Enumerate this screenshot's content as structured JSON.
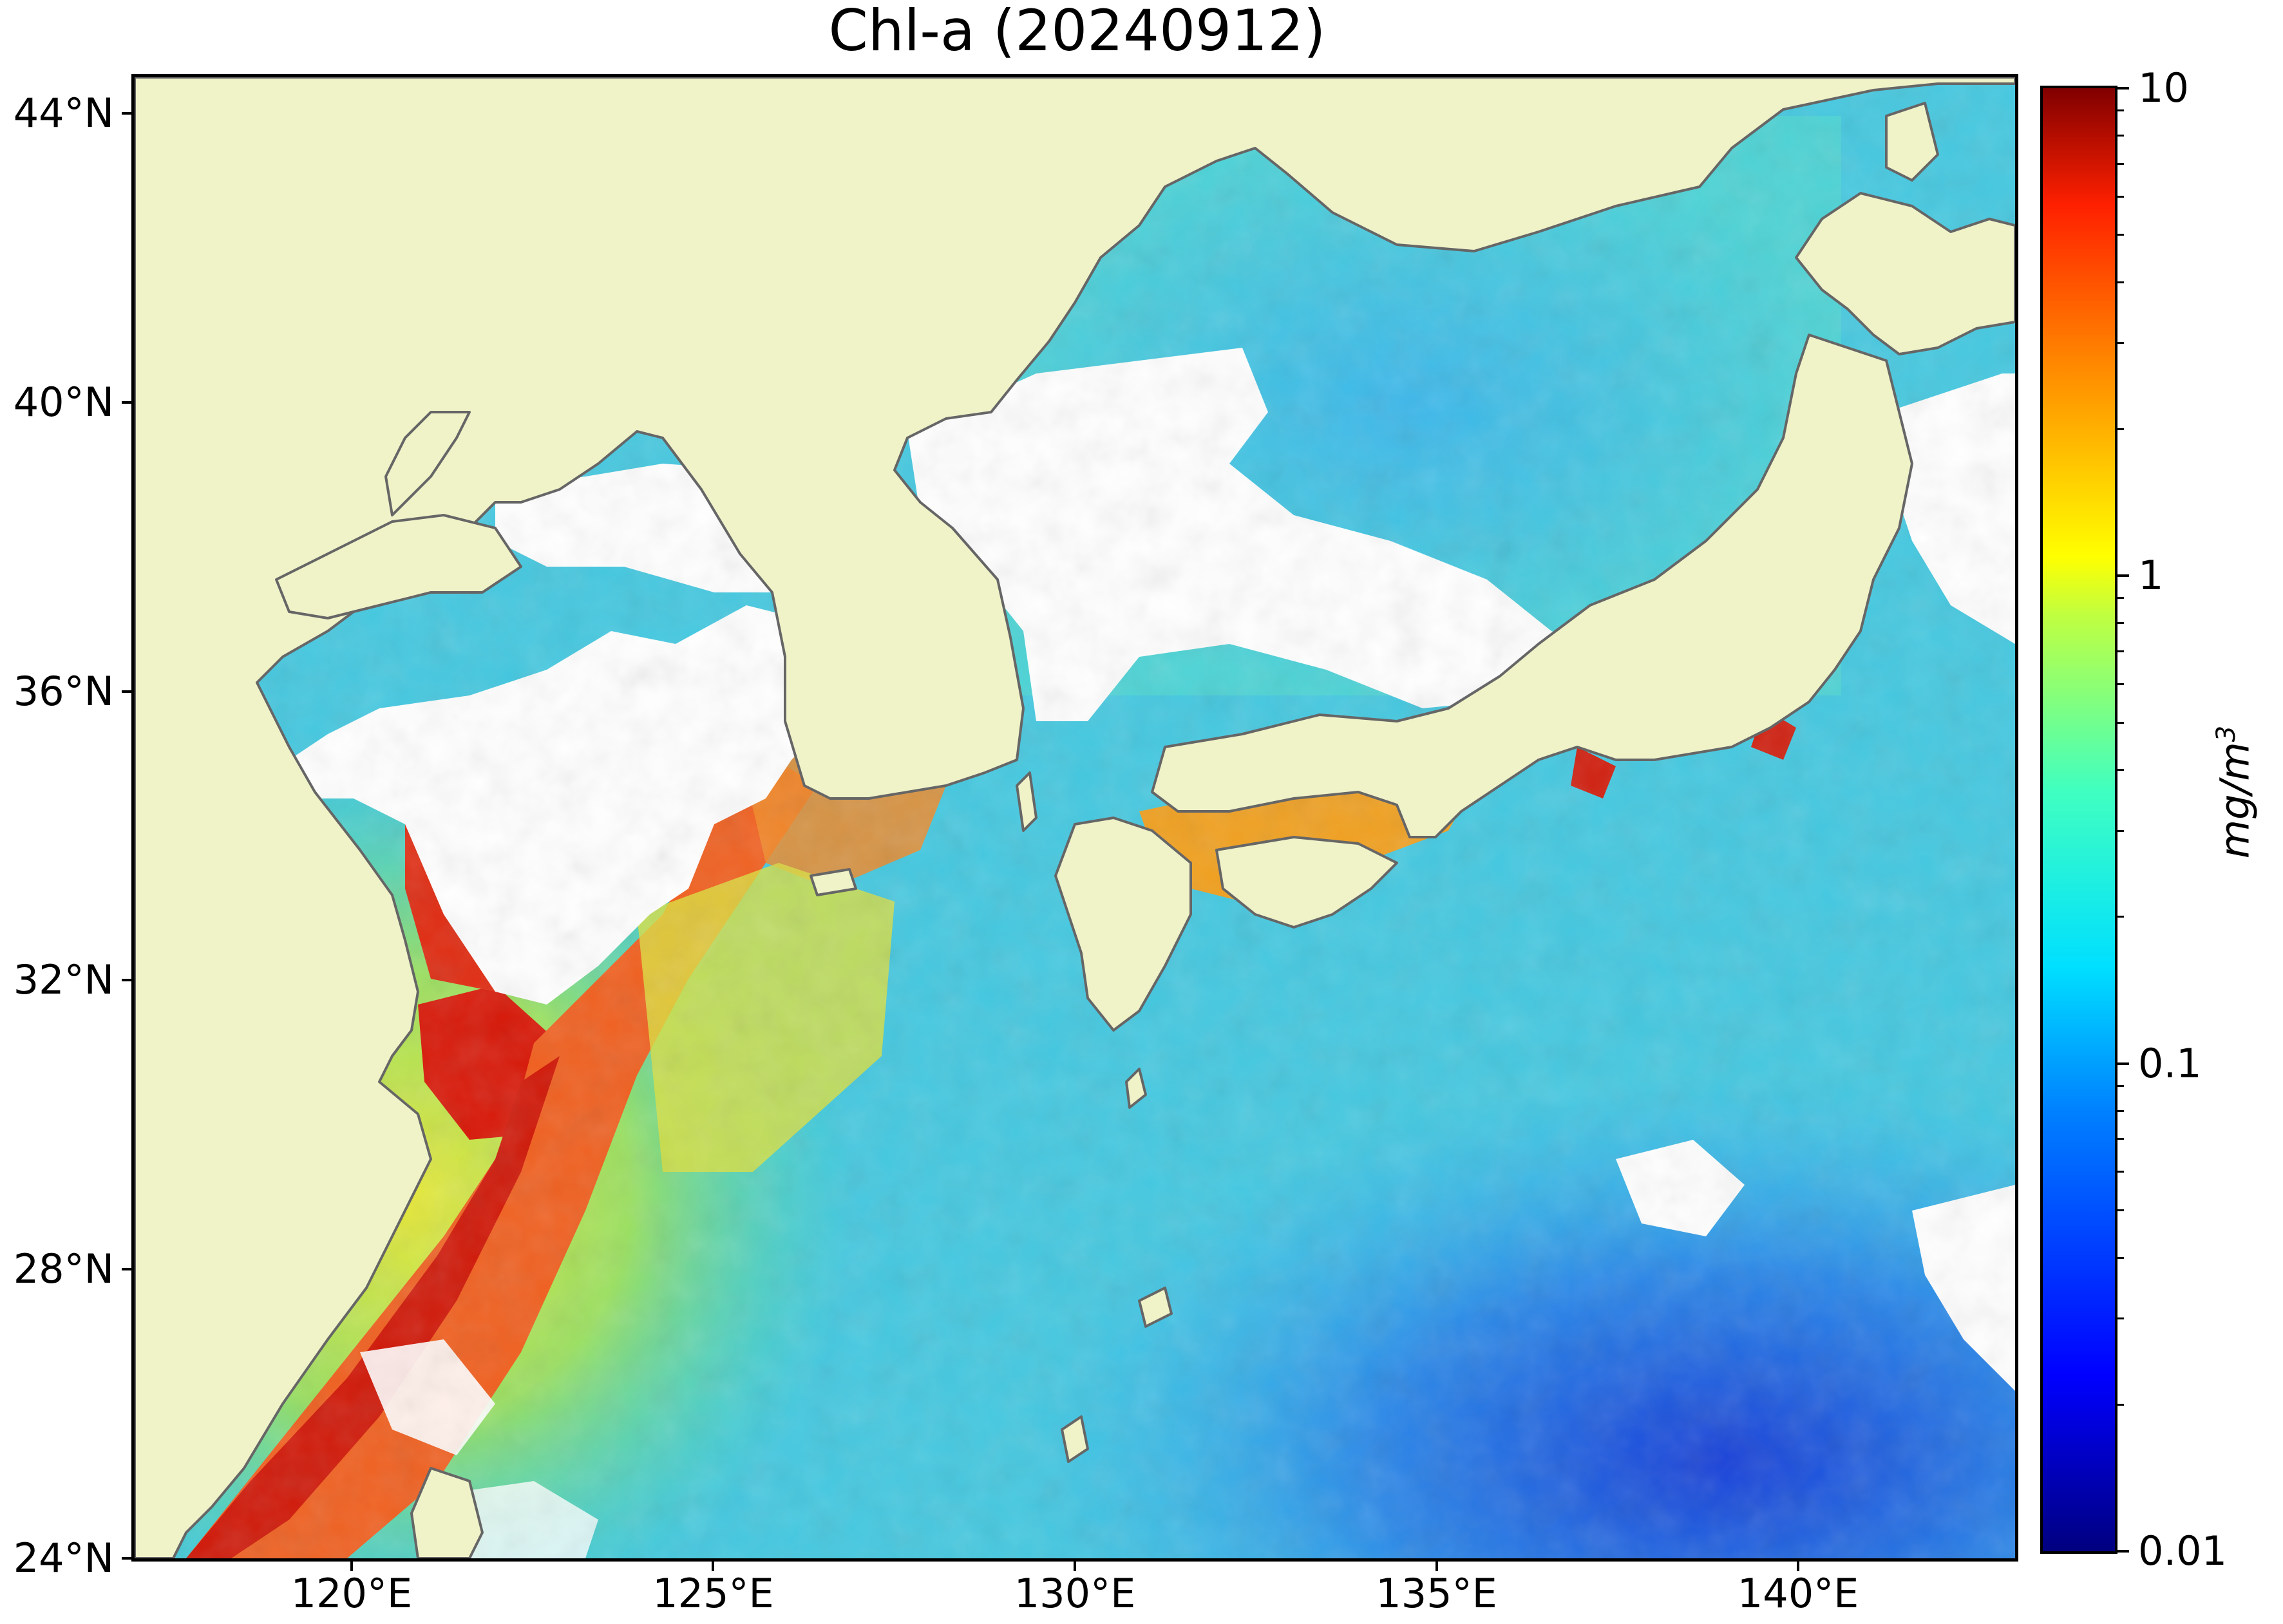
{
  "title": "Chl-a (20240912)",
  "map": {
    "projection": "equirectangular",
    "lon_range": [
      117.0,
      143.0
    ],
    "lat_range": [
      24.0,
      44.5
    ],
    "land_color": "#f0f2c8",
    "no_data_color": "#ffffff",
    "coastline_color": "#666666"
  },
  "lat_ticks": [
    {
      "value": 44,
      "label": "44°N"
    },
    {
      "value": 40,
      "label": "40°N"
    },
    {
      "value": 36,
      "label": "36°N"
    },
    {
      "value": 32,
      "label": "32°N"
    },
    {
      "value": 28,
      "label": "28°N"
    },
    {
      "value": 24,
      "label": "24°N"
    }
  ],
  "lon_ticks": [
    {
      "value": 120,
      "label": "120°E"
    },
    {
      "value": 125,
      "label": "125°E"
    },
    {
      "value": 130,
      "label": "130°E"
    },
    {
      "value": 135,
      "label": "135°E"
    },
    {
      "value": 140,
      "label": "140°E"
    }
  ],
  "colorbar": {
    "scale": "log",
    "range": [
      0.01,
      10
    ],
    "colormap": "jet",
    "unit_base": "mg/m",
    "unit_exp": "3",
    "ticks": [
      {
        "value": 10,
        "label": "10"
      },
      {
        "value": 1,
        "label": "1"
      },
      {
        "value": 0.1,
        "label": "0.1"
      },
      {
        "value": 0.01,
        "label": "0.01"
      }
    ]
  }
}
